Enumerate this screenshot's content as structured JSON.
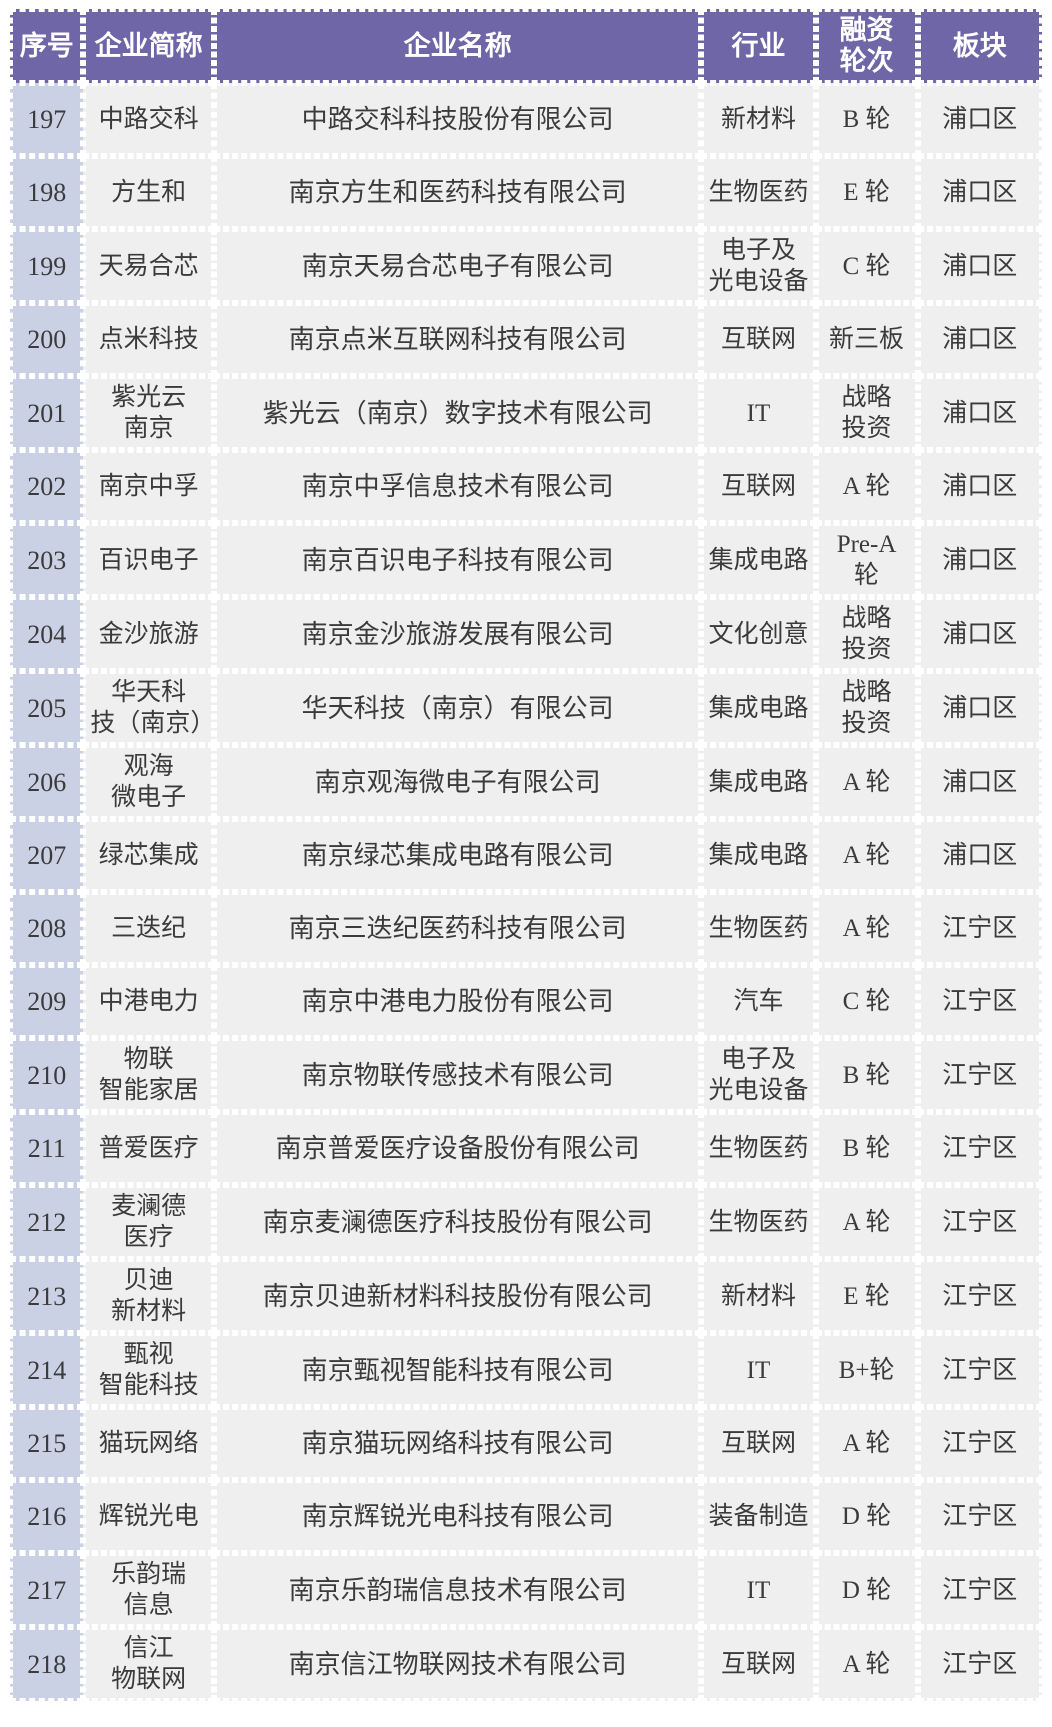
{
  "colors": {
    "header_bg": "#6f66a7",
    "header_text": "#ffffff",
    "index_column_bg": "#cbd1e4",
    "cell_bg": "#efefef",
    "text": "#3b3b3b",
    "divider": "#ffffff"
  },
  "table": {
    "columns": [
      {
        "key": "index",
        "label": "序号"
      },
      {
        "key": "short_name",
        "label": "企业简称"
      },
      {
        "key": "full_name",
        "label": "企业名称"
      },
      {
        "key": "industry",
        "label": "行业"
      },
      {
        "key": "funding_round",
        "label": "融资\n轮次"
      },
      {
        "key": "district",
        "label": "板块"
      }
    ],
    "rows": [
      {
        "index": "197",
        "short_name": "中路交科",
        "full_name": "中路交科科技股份有限公司",
        "industry": "新材料",
        "funding_round": "B 轮",
        "district": "浦口区"
      },
      {
        "index": "198",
        "short_name": "方生和",
        "full_name": "南京方生和医药科技有限公司",
        "industry": "生物医药",
        "funding_round": "E 轮",
        "district": "浦口区"
      },
      {
        "index": "199",
        "short_name": "天易合芯",
        "full_name": "南京天易合芯电子有限公司",
        "industry": "电子及\n光电设备",
        "funding_round": "C 轮",
        "district": "浦口区"
      },
      {
        "index": "200",
        "short_name": "点米科技",
        "full_name": "南京点米互联网科技有限公司",
        "industry": "互联网",
        "funding_round": "新三板",
        "district": "浦口区"
      },
      {
        "index": "201",
        "short_name": "紫光云\n南京",
        "full_name": "紫光云（南京）数字技术有限公司",
        "industry": "IT",
        "funding_round": "战略\n投资",
        "district": "浦口区"
      },
      {
        "index": "202",
        "short_name": "南京中孚",
        "full_name": "南京中孚信息技术有限公司",
        "industry": "互联网",
        "funding_round": "A 轮",
        "district": "浦口区"
      },
      {
        "index": "203",
        "short_name": "百识电子",
        "full_name": "南京百识电子科技有限公司",
        "industry": "集成电路",
        "funding_round": "Pre-A\n轮",
        "district": "浦口区"
      },
      {
        "index": "204",
        "short_name": "金沙旅游",
        "full_name": "南京金沙旅游发展有限公司",
        "industry": "文化创意",
        "funding_round": "战略\n投资",
        "district": "浦口区"
      },
      {
        "index": "205",
        "short_name": "华天科\n技（南京）",
        "full_name": "华天科技（南京）有限公司",
        "industry": "集成电路",
        "funding_round": "战略\n投资",
        "district": "浦口区"
      },
      {
        "index": "206",
        "short_name": "观海\n微电子",
        "full_name": "南京观海微电子有限公司",
        "industry": "集成电路",
        "funding_round": "A 轮",
        "district": "浦口区"
      },
      {
        "index": "207",
        "short_name": "绿芯集成",
        "full_name": "南京绿芯集成电路有限公司",
        "industry": "集成电路",
        "funding_round": "A 轮",
        "district": "浦口区"
      },
      {
        "index": "208",
        "short_name": "三迭纪",
        "full_name": "南京三迭纪医药科技有限公司",
        "industry": "生物医药",
        "funding_round": "A 轮",
        "district": "江宁区"
      },
      {
        "index": "209",
        "short_name": "中港电力",
        "full_name": "南京中港电力股份有限公司",
        "industry": "汽车",
        "funding_round": "C 轮",
        "district": "江宁区"
      },
      {
        "index": "210",
        "short_name": "物联\n智能家居",
        "full_name": "南京物联传感技术有限公司",
        "industry": "电子及\n光电设备",
        "funding_round": "B 轮",
        "district": "江宁区"
      },
      {
        "index": "211",
        "short_name": "普爱医疗",
        "full_name": "南京普爱医疗设备股份有限公司",
        "industry": "生物医药",
        "funding_round": "B 轮",
        "district": "江宁区"
      },
      {
        "index": "212",
        "short_name": "麦澜德\n医疗",
        "full_name": "南京麦澜德医疗科技股份有限公司",
        "industry": "生物医药",
        "funding_round": "A 轮",
        "district": "江宁区"
      },
      {
        "index": "213",
        "short_name": "贝迪\n新材料",
        "full_name": "南京贝迪新材料科技股份有限公司",
        "industry": "新材料",
        "funding_round": "E 轮",
        "district": "江宁区"
      },
      {
        "index": "214",
        "short_name": "甄视\n智能科技",
        "full_name": "南京甄视智能科技有限公司",
        "industry": "IT",
        "funding_round": "B+轮",
        "district": "江宁区"
      },
      {
        "index": "215",
        "short_name": "猫玩网络",
        "full_name": "南京猫玩网络科技有限公司",
        "industry": "互联网",
        "funding_round": "A 轮",
        "district": "江宁区"
      },
      {
        "index": "216",
        "short_name": "辉锐光电",
        "full_name": "南京辉锐光电科技有限公司",
        "industry": "装备制造",
        "funding_round": "D 轮",
        "district": "江宁区"
      },
      {
        "index": "217",
        "short_name": "乐韵瑞\n信息",
        "full_name": "南京乐韵瑞信息技术有限公司",
        "industry": "IT",
        "funding_round": "D 轮",
        "district": "江宁区"
      },
      {
        "index": "218",
        "short_name": "信江\n物联网",
        "full_name": "南京信江物联网技术有限公司",
        "industry": "互联网",
        "funding_round": "A 轮",
        "district": "江宁区"
      }
    ]
  }
}
